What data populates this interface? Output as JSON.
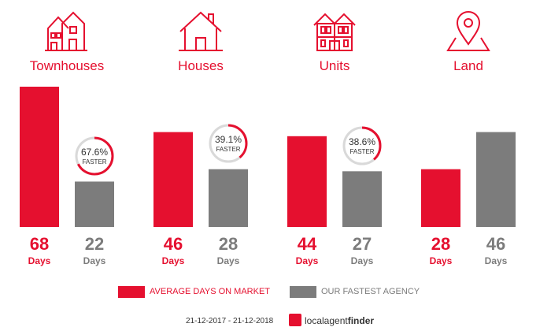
{
  "chart_data": {
    "type": "bar",
    "categories": [
      "Townhouses",
      "Houses",
      "Units",
      "Land"
    ],
    "series": [
      {
        "name": "AVERAGE DAYS ON MARKET",
        "values": [
          68,
          46,
          44,
          28
        ],
        "color": "#e5102f"
      },
      {
        "name": "OUR FASTEST AGENCY",
        "values": [
          22,
          28,
          27,
          46
        ],
        "color": "#7c7c7c"
      }
    ],
    "unit_label": "Days",
    "badges": [
      {
        "category": "Townhouses",
        "percent": "67.6%",
        "value": 67.6,
        "text": "FASTER"
      },
      {
        "category": "Houses",
        "percent": "39.1%",
        "value": 39.1,
        "text": "FASTER"
      },
      {
        "category": "Units",
        "percent": "38.6%",
        "value": 38.6,
        "text": "FASTER"
      },
      {
        "category": "Land",
        "percent": "",
        "value": null,
        "text": ""
      }
    ],
    "ylim": [
      0,
      68
    ],
    "grid": false,
    "legend_position": "bottom",
    "icons": [
      "townhouses-icon",
      "house-icon",
      "units-icon",
      "land-pin-icon"
    ]
  },
  "footer": {
    "date_range": "21-12-2017 - 21-12-2018",
    "brand_light": "localagent",
    "brand_bold": "finder"
  }
}
